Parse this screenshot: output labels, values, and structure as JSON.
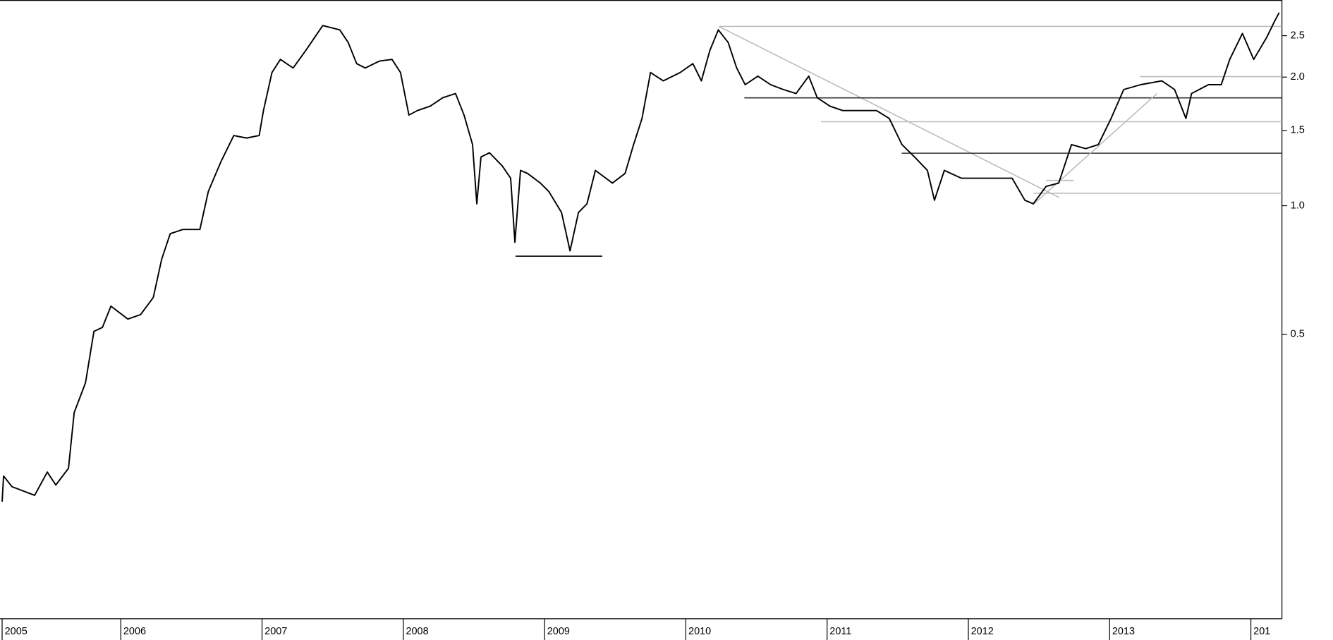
{
  "chart_data": {
    "type": "line",
    "x": [
      2005.16,
      2005.17,
      2005.23,
      2005.39,
      2005.48,
      2005.54,
      2005.63,
      2005.67,
      2005.75,
      2005.81,
      2005.87,
      2005.93,
      2006.05,
      2006.14,
      2006.23,
      2006.29,
      2006.35,
      2006.44,
      2006.56,
      2006.62,
      2006.71,
      2006.8,
      2006.89,
      2006.98,
      2007.01,
      2007.07,
      2007.13,
      2007.22,
      2007.31,
      2007.43,
      2007.55,
      2007.61,
      2007.67,
      2007.73,
      2007.83,
      2007.92,
      2007.98,
      2008.04,
      2008.1,
      2008.19,
      2008.28,
      2008.37,
      2008.43,
      2008.49,
      2008.52,
      2008.55,
      2008.61,
      2008.7,
      2008.76,
      2008.79,
      2008.83,
      2008.88,
      2008.97,
      2009.03,
      2009.12,
      2009.18,
      2009.24,
      2009.3,
      2009.36,
      2009.48,
      2009.57,
      2009.63,
      2009.69,
      2009.75,
      2009.84,
      2009.96,
      2010.05,
      2010.11,
      2010.17,
      2010.23,
      2010.3,
      2010.36,
      2010.42,
      2010.51,
      2010.6,
      2010.69,
      2010.78,
      2010.87,
      2010.93,
      2011.02,
      2011.11,
      2011.23,
      2011.35,
      2011.44,
      2011.53,
      2011.62,
      2011.71,
      2011.76,
      2011.83,
      2011.95,
      2012.07,
      2012.19,
      2012.31,
      2012.4,
      2012.46,
      2012.55,
      2012.64,
      2012.73,
      2012.83,
      2012.92,
      2013.01,
      2013.1,
      2013.22,
      2013.37,
      2013.46,
      2013.54,
      2013.58,
      2013.7,
      2013.79,
      2013.85,
      2013.94,
      2014.02,
      2014.11,
      2014.17,
      2014.2
    ],
    "series": [
      {
        "color": "#000000",
        "values": [
          0.203,
          0.233,
          0.22,
          0.21,
          0.238,
          0.222,
          0.243,
          0.328,
          0.385,
          0.508,
          0.519,
          0.582,
          0.543,
          0.556,
          0.61,
          0.75,
          0.86,
          0.88,
          0.88,
          1.08,
          1.27,
          1.46,
          1.44,
          1.46,
          1.67,
          2.05,
          2.2,
          2.1,
          2.31,
          2.64,
          2.58,
          2.41,
          2.15,
          2.1,
          2.18,
          2.2,
          2.05,
          1.63,
          1.67,
          1.71,
          1.79,
          1.83,
          1.63,
          1.39,
          1.01,
          1.3,
          1.33,
          1.24,
          1.16,
          0.821,
          1.21,
          1.19,
          1.13,
          1.08,
          0.964,
          0.784,
          0.964,
          1.01,
          1.21,
          1.13,
          1.19,
          1.39,
          1.6,
          2.05,
          1.96,
          2.05,
          2.15,
          1.96,
          2.31,
          2.58,
          2.41,
          2.1,
          1.92,
          2.01,
          1.92,
          1.87,
          1.83,
          2.01,
          1.79,
          1.71,
          1.67,
          1.67,
          1.67,
          1.6,
          1.39,
          1.3,
          1.21,
          1.03,
          1.21,
          1.16,
          1.16,
          1.16,
          1.16,
          1.03,
          1.01,
          1.11,
          1.13,
          1.39,
          1.36,
          1.39,
          1.6,
          1.87,
          1.92,
          1.96,
          1.87,
          1.6,
          1.83,
          1.92,
          1.92,
          2.2,
          2.53,
          2.2,
          2.47,
          2.71,
          2.83
        ]
      }
    ],
    "xlim": [
      2005.145,
      2014.22
    ],
    "xticks": [
      {
        "value": 2005.16,
        "label": "2005"
      },
      2006,
      2007,
      2008,
      2009,
      2010,
      2011,
      2012,
      2013,
      {
        "value": 2014,
        "label": "201"
      }
    ],
    "ylim": [
      0.108,
      3.03
    ],
    "log_y": true,
    "yticks": [
      0.5,
      {
        "value": 1.0,
        "label": "1.0"
      },
      1.5,
      {
        "value": 2.0,
        "label": "2.0"
      },
      2.5
    ]
  }
}
